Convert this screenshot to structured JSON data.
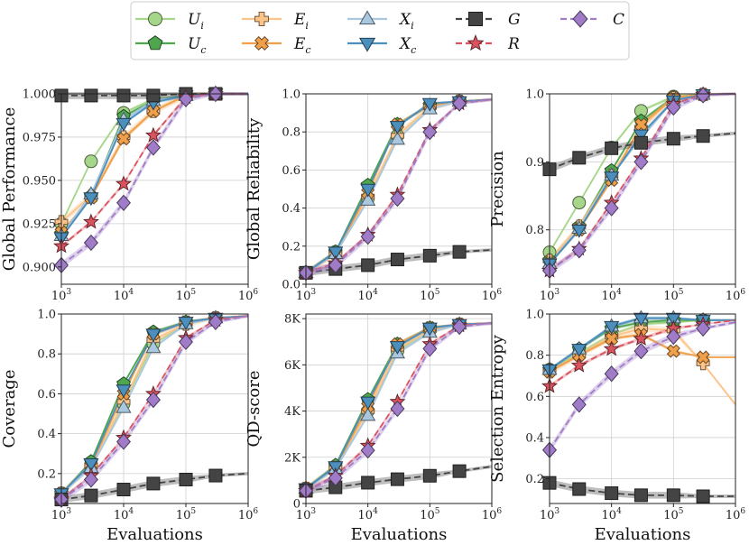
{
  "legend": {
    "entries": [
      {
        "key": "Ui",
        "label": "U",
        "sub": "i",
        "color": "#a6d68a",
        "dash": "",
        "marker": "circle"
      },
      {
        "key": "Uc",
        "label": "U",
        "sub": "c",
        "color": "#4fa64f",
        "dash": "",
        "marker": "pentagon"
      },
      {
        "key": "Ei",
        "label": "E",
        "sub": "i",
        "color": "#fdc48a",
        "dash": "",
        "marker": "plus"
      },
      {
        "key": "Ec",
        "label": "E",
        "sub": "c",
        "color": "#f0a04b",
        "dash": "",
        "marker": "x"
      },
      {
        "key": "Xi",
        "label": "X",
        "sub": "i",
        "color": "#a9c7df",
        "dash": "",
        "marker": "tri-up"
      },
      {
        "key": "Xc",
        "label": "X",
        "sub": "c",
        "color": "#4c8fbd",
        "dash": "",
        "marker": "tri-down"
      },
      {
        "key": "G",
        "label": "G",
        "sub": "",
        "color": "#444444",
        "dash": "7,4",
        "marker": "square"
      },
      {
        "key": "R",
        "label": "R",
        "sub": "",
        "color": "#d9545f",
        "dash": "7,4",
        "marker": "star"
      },
      {
        "key": "C",
        "label": "C",
        "sub": "",
        "color": "#a07cc8",
        "dash": "7,4",
        "marker": "diamond"
      }
    ]
  },
  "chart_data": [
    {
      "type": "line",
      "ylabel": "Global Performance",
      "xlabel": "",
      "xscale": "log",
      "xlim": [
        1000,
        1000000
      ],
      "ylim": [
        0.89,
        1.0
      ],
      "xticks": [
        "10^3",
        "10^4",
        "10^5",
        "10^6"
      ],
      "yticks": [
        "0.900",
        "0.925",
        "0.950",
        "0.975",
        "1.000"
      ],
      "ytick_values": [
        0.9,
        0.925,
        0.95,
        0.975,
        1.0
      ],
      "x": [
        1000,
        3000,
        10000,
        30000,
        100000,
        300000,
        1000000
      ],
      "series": [
        {
          "key": "Ui",
          "values": [
            0.925,
            0.961,
            0.989,
            0.997,
            0.999,
            1.0,
            1.0
          ]
        },
        {
          "key": "Uc",
          "values": [
            0.919,
            0.941,
            0.987,
            0.996,
            0.999,
            1.0,
            1.0
          ]
        },
        {
          "key": "Ei",
          "values": [
            0.926,
            0.941,
            0.975,
            0.99,
            0.999,
            1.0,
            1.0
          ]
        },
        {
          "key": "Ec",
          "values": [
            0.92,
            0.94,
            0.974,
            0.99,
            0.999,
            1.0,
            1.0
          ]
        },
        {
          "key": "Xi",
          "values": [
            0.918,
            0.942,
            0.985,
            0.996,
            0.999,
            1.0,
            1.0
          ]
        },
        {
          "key": "Xc",
          "values": [
            0.917,
            0.94,
            0.983,
            0.995,
            0.999,
            1.0,
            1.0
          ]
        },
        {
          "key": "G",
          "values": [
            0.999,
            0.999,
            0.999,
            0.999,
            1.0,
            1.0,
            1.0
          ]
        },
        {
          "key": "R",
          "values": [
            0.912,
            0.926,
            0.948,
            0.976,
            0.998,
            1.0,
            1.0
          ]
        },
        {
          "key": "C",
          "values": [
            0.901,
            0.914,
            0.937,
            0.969,
            0.997,
            1.0,
            1.0
          ]
        }
      ]
    },
    {
      "type": "line",
      "ylabel": "Global Reliability",
      "xlabel": "",
      "xscale": "log",
      "xlim": [
        1000,
        1000000
      ],
      "ylim": [
        0.0,
        1.0
      ],
      "xticks": [
        "10^3",
        "10^4",
        "10^5",
        "10^6"
      ],
      "yticks": [
        "0.0",
        "0.2",
        "0.4",
        "0.6",
        "0.8",
        "1.0"
      ],
      "ytick_values": [
        0,
        0.2,
        0.4,
        0.6,
        0.8,
        1.0
      ],
      "x": [
        1000,
        3000,
        10000,
        30000,
        100000,
        300000,
        1000000
      ],
      "series": [
        {
          "key": "Ui",
          "values": [
            0.06,
            0.17,
            0.45,
            0.78,
            0.93,
            0.96,
            0.97
          ]
        },
        {
          "key": "Uc",
          "values": [
            0.06,
            0.17,
            0.52,
            0.84,
            0.94,
            0.96,
            0.97
          ]
        },
        {
          "key": "Ei",
          "values": [
            0.06,
            0.16,
            0.46,
            0.78,
            0.93,
            0.96,
            0.97
          ]
        },
        {
          "key": "Ec",
          "values": [
            0.06,
            0.16,
            0.48,
            0.84,
            0.94,
            0.96,
            0.97
          ]
        },
        {
          "key": "Xi",
          "values": [
            0.06,
            0.16,
            0.44,
            0.76,
            0.92,
            0.96,
            0.97
          ]
        },
        {
          "key": "Xc",
          "values": [
            0.06,
            0.17,
            0.5,
            0.83,
            0.95,
            0.96,
            0.97
          ]
        },
        {
          "key": "G",
          "values": [
            0.06,
            0.08,
            0.1,
            0.13,
            0.15,
            0.17,
            0.18
          ]
        },
        {
          "key": "R",
          "values": [
            0.06,
            0.11,
            0.26,
            0.47,
            0.81,
            0.95,
            0.97
          ]
        },
        {
          "key": "C",
          "values": [
            0.06,
            0.1,
            0.25,
            0.45,
            0.8,
            0.95,
            0.97
          ]
        }
      ]
    },
    {
      "type": "line",
      "ylabel": "Precision",
      "xlabel": "",
      "xscale": "log",
      "xlim": [
        1000,
        1000000
      ],
      "ylim": [
        0.72,
        1.0
      ],
      "xticks": [
        "10^3",
        "10^4",
        "10^5",
        "10^6"
      ],
      "yticks": [
        "0.8",
        "0.9",
        "1.0"
      ],
      "ytick_values": [
        0.8,
        0.9,
        1.0
      ],
      "x": [
        1000,
        3000,
        10000,
        30000,
        100000,
        300000,
        1000000
      ],
      "series": [
        {
          "key": "Ui",
          "values": [
            0.767,
            0.84,
            0.921,
            0.975,
            0.996,
            0.999,
            1.0
          ]
        },
        {
          "key": "Uc",
          "values": [
            0.755,
            0.805,
            0.887,
            0.96,
            0.995,
            0.999,
            1.0
          ]
        },
        {
          "key": "Ei",
          "values": [
            0.755,
            0.805,
            0.88,
            0.95,
            0.994,
            0.999,
            1.0
          ]
        },
        {
          "key": "Ec",
          "values": [
            0.75,
            0.8,
            0.873,
            0.955,
            0.994,
            0.999,
            1.0
          ]
        },
        {
          "key": "Xi",
          "values": [
            0.75,
            0.802,
            0.88,
            0.935,
            0.99,
            0.999,
            1.0
          ]
        },
        {
          "key": "Xc",
          "values": [
            0.75,
            0.8,
            0.878,
            0.94,
            0.99,
            0.999,
            1.0
          ]
        },
        {
          "key": "G",
          "values": [
            0.889,
            0.906,
            0.92,
            0.928,
            0.934,
            0.938,
            0.942
          ]
        },
        {
          "key": "R",
          "values": [
            0.74,
            0.772,
            0.84,
            0.905,
            0.985,
            0.999,
            1.0
          ]
        },
        {
          "key": "C",
          "values": [
            0.74,
            0.77,
            0.832,
            0.9,
            0.98,
            0.998,
            1.0
          ]
        }
      ]
    },
    {
      "type": "line",
      "ylabel": "Coverage",
      "xlabel": "Evaluations",
      "xscale": "log",
      "xlim": [
        1000,
        1000000
      ],
      "ylim": [
        0.05,
        1.0
      ],
      "xticks": [
        "10^3",
        "10^4",
        "10^5",
        "10^6"
      ],
      "yticks": [
        "0.2",
        "0.4",
        "0.6",
        "0.8",
        "1.0"
      ],
      "ytick_values": [
        0.2,
        0.4,
        0.6,
        0.8,
        1.0
      ],
      "x": [
        1000,
        3000,
        10000,
        30000,
        100000,
        300000,
        1000000
      ],
      "series": [
        {
          "key": "Ui",
          "values": [
            0.1,
            0.24,
            0.55,
            0.85,
            0.95,
            0.98,
            0.99
          ]
        },
        {
          "key": "Uc",
          "values": [
            0.1,
            0.26,
            0.65,
            0.91,
            0.96,
            0.98,
            0.99
          ]
        },
        {
          "key": "Ei",
          "values": [
            0.1,
            0.24,
            0.56,
            0.87,
            0.95,
            0.98,
            0.99
          ]
        },
        {
          "key": "Ec",
          "values": [
            0.1,
            0.24,
            0.6,
            0.9,
            0.96,
            0.98,
            0.99
          ]
        },
        {
          "key": "Xi",
          "values": [
            0.1,
            0.23,
            0.53,
            0.83,
            0.95,
            0.98,
            0.99
          ]
        },
        {
          "key": "Xc",
          "values": [
            0.1,
            0.25,
            0.62,
            0.9,
            0.96,
            0.98,
            0.99
          ]
        },
        {
          "key": "G",
          "values": [
            0.07,
            0.09,
            0.12,
            0.15,
            0.17,
            0.19,
            0.2
          ]
        },
        {
          "key": "R",
          "values": [
            0.07,
            0.19,
            0.38,
            0.6,
            0.88,
            0.97,
            0.99
          ]
        },
        {
          "key": "C",
          "values": [
            0.07,
            0.17,
            0.36,
            0.57,
            0.86,
            0.96,
            0.99
          ]
        }
      ]
    },
    {
      "type": "line",
      "ylabel": "QD-score",
      "xlabel": "Evaluations",
      "xscale": "log",
      "xlim": [
        1000,
        1000000
      ],
      "ylim": [
        0,
        8200
      ],
      "xticks": [
        "10^3",
        "10^4",
        "10^5",
        "10^6"
      ],
      "yticks": [
        "0",
        "2K",
        "4K",
        "6K",
        "8K"
      ],
      "ytick_values": [
        0,
        2000,
        4000,
        6000,
        8000
      ],
      "x": [
        1000,
        3000,
        10000,
        30000,
        100000,
        300000,
        1000000
      ],
      "series": [
        {
          "key": "Ui",
          "values": [
            650,
            1600,
            4000,
            6600,
            7500,
            7750,
            7800
          ]
        },
        {
          "key": "Uc",
          "values": [
            650,
            1650,
            4500,
            6900,
            7600,
            7750,
            7800
          ]
        },
        {
          "key": "Ei",
          "values": [
            650,
            1550,
            4000,
            6700,
            7500,
            7750,
            7800
          ]
        },
        {
          "key": "Ec",
          "values": [
            650,
            1550,
            4200,
            6900,
            7600,
            7750,
            7800
          ]
        },
        {
          "key": "Xi",
          "values": [
            650,
            1500,
            3800,
            6500,
            7400,
            7750,
            7800
          ]
        },
        {
          "key": "Xc",
          "values": [
            650,
            1600,
            4400,
            6800,
            7600,
            7750,
            7800
          ]
        },
        {
          "key": "G",
          "values": [
            550,
            700,
            900,
            1050,
            1200,
            1400,
            1600
          ]
        },
        {
          "key": "R",
          "values": [
            550,
            1200,
            2500,
            4400,
            6900,
            7700,
            7800
          ]
        },
        {
          "key": "C",
          "values": [
            550,
            1100,
            2300,
            4100,
            6700,
            7650,
            7800
          ]
        }
      ]
    },
    {
      "type": "line",
      "ylabel": "Selection Entropy",
      "xlabel": "Evaluations",
      "xscale": "log",
      "xlim": [
        1000,
        1000000
      ],
      "ylim": [
        0.08,
        1.0
      ],
      "xticks": [
        "10^3",
        "10^4",
        "10^5",
        "10^6"
      ],
      "yticks": [
        "0.2",
        "0.4",
        "0.6",
        "0.8",
        "1.0"
      ],
      "ytick_values": [
        0.2,
        0.4,
        0.6,
        0.8,
        1.0
      ],
      "x": [
        1000,
        3000,
        10000,
        30000,
        100000,
        300000,
        1000000
      ],
      "series": [
        {
          "key": "Ui",
          "values": [
            0.73,
            0.81,
            0.9,
            0.95,
            0.96,
            0.97,
            0.97
          ]
        },
        {
          "key": "Uc",
          "values": [
            0.73,
            0.83,
            0.93,
            0.96,
            0.97,
            0.97,
            0.97
          ]
        },
        {
          "key": "Ei",
          "values": [
            0.72,
            0.8,
            0.89,
            0.93,
            0.92,
            0.76,
            0.56
          ]
        },
        {
          "key": "Ec",
          "values": [
            0.72,
            0.8,
            0.88,
            0.9,
            0.82,
            0.79,
            0.79
          ]
        },
        {
          "key": "Xi",
          "values": [
            0.73,
            0.83,
            0.94,
            0.98,
            0.98,
            0.97,
            0.97
          ]
        },
        {
          "key": "Xc",
          "values": [
            0.73,
            0.83,
            0.94,
            0.98,
            0.98,
            0.97,
            0.97
          ]
        },
        {
          "key": "G",
          "values": [
            0.18,
            0.15,
            0.13,
            0.12,
            0.12,
            0.115,
            0.115
          ]
        },
        {
          "key": "R",
          "values": [
            0.65,
            0.75,
            0.83,
            0.88,
            0.93,
            0.95,
            0.97
          ]
        },
        {
          "key": "C",
          "values": [
            0.34,
            0.56,
            0.71,
            0.82,
            0.89,
            0.93,
            0.96
          ]
        }
      ]
    }
  ]
}
